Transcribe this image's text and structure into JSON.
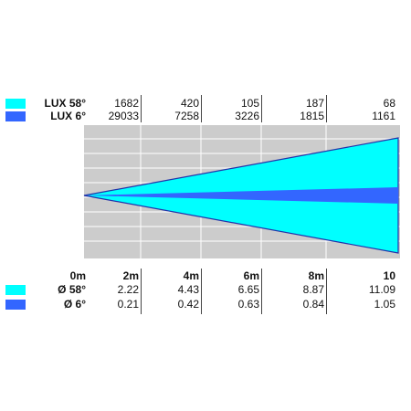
{
  "colors": {
    "wide": "#00ffff",
    "narrow": "#3366ff",
    "panel": "#cccccc",
    "outline": "#2233aa"
  },
  "lux": {
    "rows": [
      {
        "label": "LUX 58°",
        "swatch": "wide",
        "values": [
          "1682",
          "420",
          "105",
          "187",
          "68"
        ]
      },
      {
        "label": "LUX 6°",
        "swatch": "narrow",
        "values": [
          "29033",
          "7258",
          "3226",
          "1815",
          "1161"
        ]
      }
    ]
  },
  "distance": {
    "label": "0m",
    "headers": [
      "2m",
      "4m",
      "6m",
      "8m",
      "10"
    ],
    "rows": [
      {
        "label": "Ø 58°",
        "swatch": "wide",
        "values": [
          "2.22",
          "4.43",
          "6.65",
          "8.87",
          "11.09"
        ]
      },
      {
        "label": "Ø 6°",
        "swatch": "narrow",
        "values": [
          "0.21",
          "0.42",
          "0.63",
          "0.84",
          "1.05"
        ]
      }
    ]
  },
  "beam": {
    "wide_angle_deg": 58,
    "narrow_angle_deg": 6
  }
}
